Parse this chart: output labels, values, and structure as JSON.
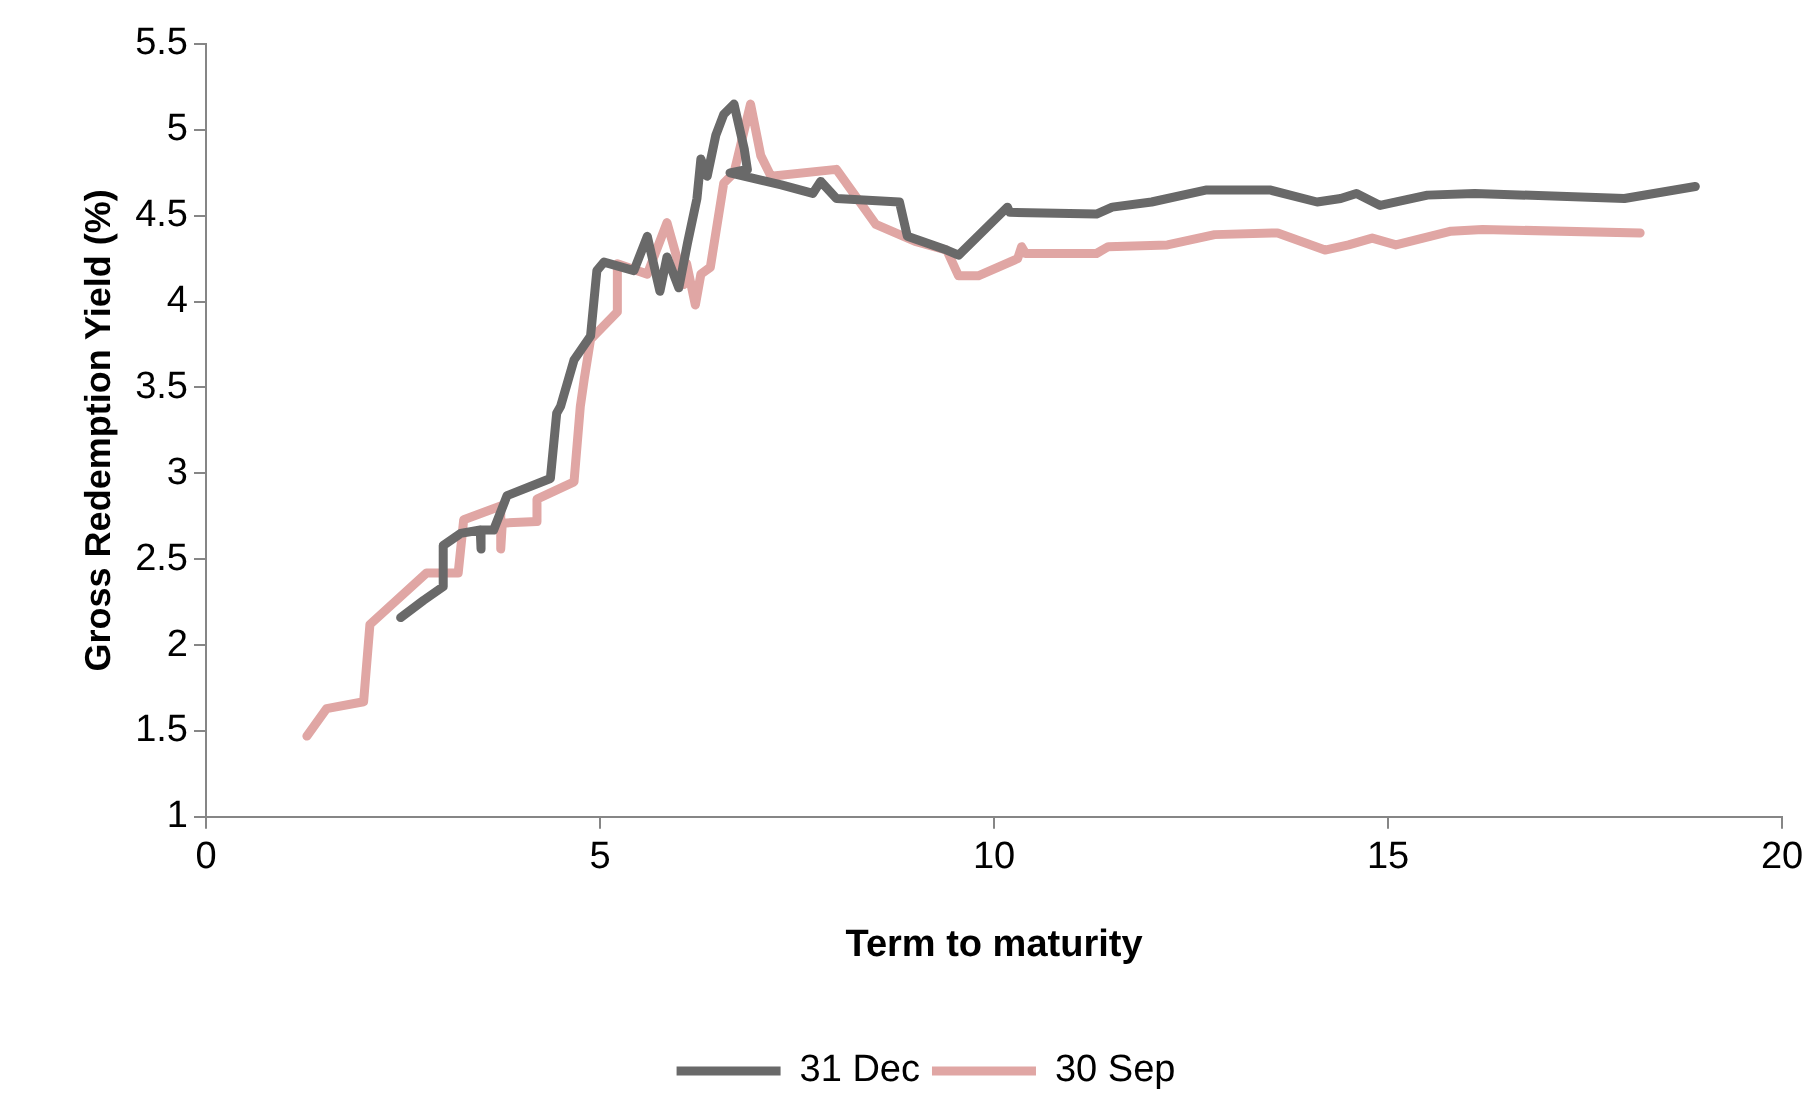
{
  "chart_data": {
    "type": "line",
    "xlabel": "Term to maturity",
    "ylabel": "Gross Redemption Yield (%)",
    "xlim": [
      0,
      20
    ],
    "xticks": [
      0,
      5,
      10,
      15,
      20
    ],
    "ylim": [
      1,
      5.5
    ],
    "yticks": [
      1,
      1.5,
      2,
      2.5,
      3,
      3.5,
      4,
      4.5,
      5,
      5.5
    ],
    "grid": false,
    "legend": "bottom",
    "marker": "none",
    "line_style": "solid",
    "series": [
      {
        "name": "31 Dec",
        "color": "#696969",
        "x": [
          2.47,
          2.76,
          3.01,
          3.01,
          3.23,
          3.48,
          3.48,
          3.5,
          3.65,
          3.82,
          4.37,
          4.45,
          4.5,
          4.67,
          4.88,
          4.96,
          5.05,
          5.43,
          5.6,
          5.76,
          5.85,
          6.0,
          6.11,
          6.23,
          6.28,
          6.36,
          6.47,
          6.57,
          6.7,
          6.83,
          6.87,
          6.65,
          7.3,
          7.7,
          7.8,
          8.0,
          8.8,
          8.9,
          9.4,
          9.55,
          10.17,
          10.2,
          11.3,
          11.5,
          12.0,
          12.7,
          13.5,
          14.1,
          14.4,
          14.6,
          14.9,
          15.5,
          16.1,
          18.0,
          18.9
        ],
        "values": [
          2.16,
          2.26,
          2.34,
          2.58,
          2.65,
          2.67,
          2.56,
          2.67,
          2.67,
          2.87,
          2.97,
          3.35,
          3.39,
          3.66,
          3.8,
          4.18,
          4.23,
          4.18,
          4.38,
          4.06,
          4.26,
          4.08,
          4.34,
          4.6,
          4.83,
          4.73,
          4.97,
          5.09,
          5.15,
          4.89,
          4.77,
          4.75,
          4.68,
          4.63,
          4.7,
          4.6,
          4.58,
          4.38,
          4.3,
          4.27,
          4.55,
          4.52,
          4.51,
          4.55,
          4.58,
          4.65,
          4.65,
          4.58,
          4.6,
          4.63,
          4.56,
          4.62,
          4.63,
          4.6,
          4.67
        ]
      },
      {
        "name": "30 Sep",
        "color": "#e0a6a4",
        "x": [
          1.28,
          1.53,
          2.0,
          2.08,
          2.8,
          3.0,
          3.2,
          3.27,
          3.74,
          3.74,
          3.76,
          4.2,
          4.2,
          4.67,
          4.75,
          4.8,
          4.88,
          5.22,
          5.22,
          5.6,
          5.85,
          6.07,
          6.1,
          6.21,
          6.28,
          6.4,
          6.57,
          6.7,
          6.91,
          7.04,
          7.17,
          8.0,
          8.5,
          9.0,
          9.4,
          9.55,
          9.8,
          10.3,
          10.35,
          10.4,
          11.3,
          11.45,
          12.2,
          12.8,
          13.6,
          14.2,
          14.5,
          14.8,
          15.1,
          15.8,
          16.2,
          18.2
        ],
        "values": [
          1.47,
          1.63,
          1.67,
          2.12,
          2.42,
          2.42,
          2.42,
          2.73,
          2.81,
          2.56,
          2.71,
          2.72,
          2.85,
          2.95,
          3.39,
          3.55,
          3.78,
          3.94,
          4.22,
          4.16,
          4.46,
          4.1,
          4.22,
          3.98,
          4.16,
          4.2,
          4.69,
          4.75,
          5.15,
          4.85,
          4.73,
          4.77,
          4.45,
          4.35,
          4.3,
          4.15,
          4.15,
          4.25,
          4.32,
          4.28,
          4.28,
          4.32,
          4.33,
          4.39,
          4.4,
          4.3,
          4.33,
          4.37,
          4.33,
          4.41,
          4.42,
          4.4
        ]
      }
    ]
  }
}
